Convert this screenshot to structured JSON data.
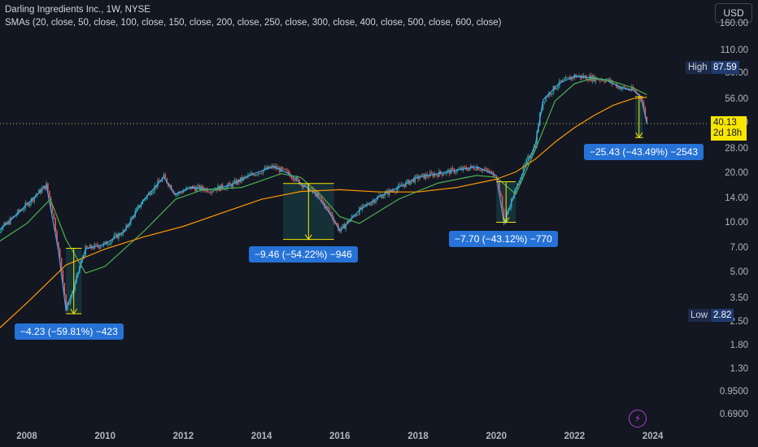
{
  "header": {
    "title": "Darling Ingredients Inc., 1W, NYSE",
    "indicator": "SMAs (20, close, 50, close, 100, close, 150, close, 200, close, 250, close, 300, close, 400, close, 500, close, 600, close)"
  },
  "currency_button": "USD",
  "high": {
    "label": "High",
    "value": "87.59"
  },
  "low": {
    "label": "Low",
    "value": "2.82"
  },
  "last_price": {
    "value": "40.13",
    "countdown": "2d 18h"
  },
  "drawdowns": [
    {
      "label": "−4.23 (−59.81%) −423"
    },
    {
      "label": "−9.46 (−54.22%) −946"
    },
    {
      "label": "−7.70 (−43.12%) −770"
    },
    {
      "label": "−25.43 (−43.49%) −2543"
    }
  ],
  "colors": {
    "background": "#131722",
    "up": "#26a69a",
    "down": "#ef5350",
    "sma_fast": "#42a5f5",
    "sma_mid": "#4caf50",
    "sma_slow": "#ff9800",
    "measure": "#f7e600",
    "label_bg": "#2672d6"
  },
  "icons": {
    "replay": "lightning-bolt-icon"
  },
  "chart_data": {
    "type": "line",
    "y_scale": "log",
    "y_ticks": [
      "160.00",
      "110.00",
      "80.00",
      "56.00",
      "40.00",
      "28.00",
      "20.00",
      "14.00",
      "10.00",
      "7.00",
      "5.00",
      "3.50",
      "2.50",
      "1.80",
      "1.30",
      "0.9500",
      "0.6900"
    ],
    "x_ticks": [
      "2008",
      "2010",
      "2012",
      "2014",
      "2016",
      "2018",
      "2020",
      "2022",
      "2024"
    ],
    "series": [
      {
        "x": [
          2007.0,
          2007.5,
          2008.0,
          2008.5,
          2008.8,
          2009.0,
          2009.2,
          2009.5,
          2010.0,
          2010.5,
          2011.0,
          2011.5,
          2011.8,
          2012.2,
          2012.7,
          2013.2,
          2013.8,
          2014.3,
          2014.7,
          2015.0,
          2015.4,
          2015.8,
          2016.0,
          2016.5,
          2017.0,
          2017.5,
          2018.0,
          2018.5,
          2019.0,
          2019.5,
          2020.0,
          2020.2,
          2020.5,
          2021.0,
          2021.2,
          2021.6,
          2022.0,
          2022.4,
          2022.8,
          2023.2,
          2023.5,
          2023.7,
          2023.85
        ],
        "y": [
          8,
          10,
          13,
          17,
          7,
          3,
          4,
          7,
          7.5,
          9,
          14,
          19,
          15,
          16.5,
          16,
          17,
          20,
          22,
          20,
          17.5,
          15,
          11,
          9,
          12,
          14.5,
          16.5,
          19,
          20,
          21,
          22,
          19.5,
          10,
          16,
          30,
          56,
          70,
          78,
          76,
          74,
          66,
          64,
          58,
          40
        ]
      },
      {
        "x": [
          2007.0,
          2008.0,
          2008.6,
          2009.0,
          2009.5,
          2010.0,
          2011.0,
          2011.8,
          2012.5,
          2013.5,
          2014.5,
          2015.0,
          2015.5,
          2016.0,
          2016.5,
          2017.5,
          2018.5,
          2019.5,
          2020.0,
          2020.5,
          2021.0,
          2021.5,
          2022.0,
          2022.5,
          2023.0,
          2023.5,
          2023.85
        ],
        "y": [
          7,
          10,
          14,
          8,
          5,
          5.5,
          9,
          14,
          16,
          16.5,
          20,
          19,
          15,
          11,
          10,
          14,
          17.5,
          19.5,
          19,
          15,
          28,
          55,
          70,
          76,
          72,
          66,
          60
        ]
      },
      {
        "x": [
          2007.0,
          2008.0,
          2009.0,
          2010.0,
          2011.0,
          2012.0,
          2013.0,
          2014.0,
          2015.0,
          2016.0,
          2017.0,
          2018.0,
          2019.0,
          2020.0,
          2020.5,
          2021.0,
          2021.5,
          2022.0,
          2022.5,
          2023.0,
          2023.5,
          2023.85
        ],
        "y": [
          2.0,
          3.3,
          5.6,
          7.0,
          8.3,
          9.6,
          11.6,
          14.0,
          15.6,
          16.0,
          15.5,
          15.5,
          16.5,
          18.5,
          20.5,
          24.5,
          31,
          38,
          45,
          52,
          57,
          58
        ]
      }
    ],
    "measurements": [
      {
        "from": 7.07,
        "to": 2.84,
        "year_start": 2009.0,
        "year_end": 2009.4
      },
      {
        "from": 17.45,
        "to": 7.99,
        "year_start": 2014.55,
        "year_end": 2015.85
      },
      {
        "from": 17.86,
        "to": 10.16,
        "year_start": 2020.0,
        "year_end": 2020.5
      },
      {
        "from": 58.47,
        "to": 33.04,
        "year_start": 2023.55,
        "year_end": 2023.75
      }
    ]
  }
}
